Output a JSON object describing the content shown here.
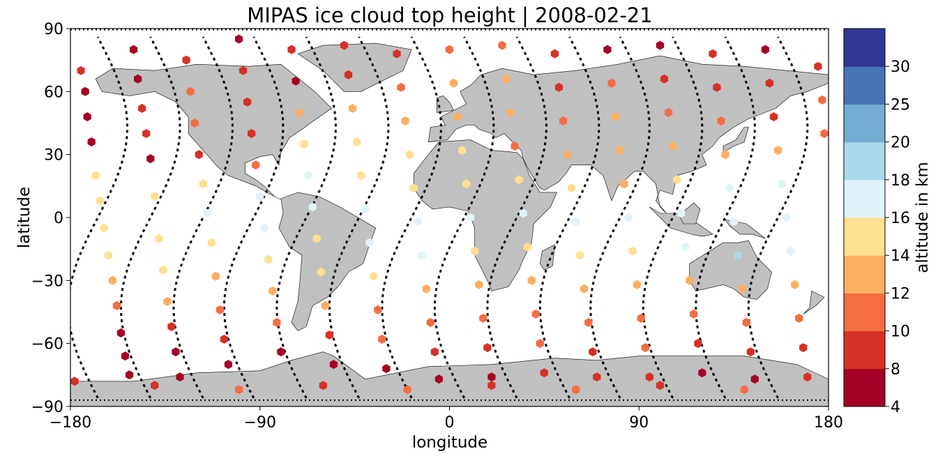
{
  "chart_data": {
    "type": "scatter",
    "title": "MIPAS ice cloud top height | 2008-02-21",
    "xlabel": "longitude",
    "ylabel": "latitude",
    "xlim": [
      -180,
      180
    ],
    "ylim": [
      -90,
      90
    ],
    "xticks": [
      -180,
      -90,
      0,
      90,
      180
    ],
    "yticks": [
      -90,
      -60,
      -30,
      0,
      30,
      60,
      90
    ],
    "xtick_labels": [
      "−180",
      "−90",
      "0",
      "90",
      "180"
    ],
    "ytick_labels": [
      "−90",
      "−60",
      "−30",
      "0",
      "30",
      "60",
      "90"
    ],
    "colorbar": {
      "label": "altitude in km",
      "bounds": [
        4,
        8,
        10,
        12,
        14,
        16,
        18,
        20,
        25,
        30
      ],
      "tick_labels": [
        "4",
        "8",
        "10",
        "12",
        "14",
        "16",
        "18",
        "20",
        "25",
        "30"
      ],
      "colors": [
        "#a50026",
        "#d73027",
        "#f46d43",
        "#fdae61",
        "#fee090",
        "#e0f3f8",
        "#abd9e9",
        "#74add1",
        "#4575b4",
        "#313695"
      ]
    },
    "land_color": "#c0c0c0",
    "track_style": "black dotted",
    "track_phases": [
      -167,
      -142,
      -117,
      -93,
      -68,
      -43,
      -18,
      7,
      32,
      57,
      81,
      106,
      131,
      156
    ],
    "points": [
      [
        -175,
        70,
        8
      ],
      [
        -173,
        60,
        6
      ],
      [
        -172,
        48,
        6
      ],
      [
        -170,
        36,
        5
      ],
      [
        -168,
        20,
        15
      ],
      [
        -166,
        8,
        15
      ],
      [
        -164,
        -5,
        15
      ],
      [
        -162,
        -18,
        15
      ],
      [
        -160,
        -30,
        12
      ],
      [
        -158,
        -42,
        10
      ],
      [
        -156,
        -55,
        7
      ],
      [
        -154,
        -66,
        6
      ],
      [
        -152,
        -75,
        6
      ],
      [
        -150,
        80,
        7
      ],
      [
        -148,
        66,
        6
      ],
      [
        -146,
        52,
        9
      ],
      [
        -144,
        40,
        8
      ],
      [
        -142,
        28,
        7
      ],
      [
        -140,
        10,
        15
      ],
      [
        -138,
        -10,
        15
      ],
      [
        -136,
        -25,
        15
      ],
      [
        -134,
        -40,
        12
      ],
      [
        -132,
        -52,
        9
      ],
      [
        -130,
        -64,
        7
      ],
      [
        -128,
        -76,
        6
      ],
      [
        -125,
        75,
        9
      ],
      [
        -123,
        60,
        11
      ],
      [
        -121,
        45,
        10
      ],
      [
        -119,
        30,
        8
      ],
      [
        -117,
        16,
        15
      ],
      [
        -115,
        2,
        17
      ],
      [
        -113,
        -12,
        15
      ],
      [
        -111,
        -28,
        12
      ],
      [
        -109,
        -44,
        10
      ],
      [
        -107,
        -58,
        9
      ],
      [
        -105,
        -70,
        6
      ],
      [
        -100,
        85,
        7
      ],
      [
        -98,
        70,
        8
      ],
      [
        -96,
        55,
        9
      ],
      [
        -94,
        40,
        9
      ],
      [
        -92,
        25,
        11
      ],
      [
        -90,
        10,
        16
      ],
      [
        -88,
        -5,
        17
      ],
      [
        -86,
        -20,
        15
      ],
      [
        -84,
        -35,
        12
      ],
      [
        -82,
        -50,
        10
      ],
      [
        -80,
        -64,
        6
      ],
      [
        -75,
        80,
        8
      ],
      [
        -73,
        65,
        7
      ],
      [
        -71,
        50,
        13
      ],
      [
        -69,
        35,
        14
      ],
      [
        -67,
        20,
        16
      ],
      [
        -65,
        5,
        17
      ],
      [
        -63,
        -10,
        15
      ],
      [
        -61,
        -26,
        14
      ],
      [
        -59,
        -42,
        12
      ],
      [
        -57,
        -56,
        9
      ],
      [
        -55,
        -70,
        7
      ],
      [
        -50,
        82,
        8
      ],
      [
        -48,
        68,
        9
      ],
      [
        -46,
        52,
        13
      ],
      [
        -44,
        36,
        14
      ],
      [
        -42,
        20,
        15
      ],
      [
        -40,
        4,
        17
      ],
      [
        -38,
        -12,
        16
      ],
      [
        -36,
        -28,
        15
      ],
      [
        -34,
        -44,
        11
      ],
      [
        -32,
        -58,
        10
      ],
      [
        -30,
        -72,
        7
      ],
      [
        -25,
        78,
        9
      ],
      [
        -23,
        62,
        11
      ],
      [
        -21,
        46,
        13
      ],
      [
        -19,
        30,
        14
      ],
      [
        -17,
        14,
        15
      ],
      [
        -15,
        -2,
        17
      ],
      [
        -13,
        -18,
        16
      ],
      [
        -11,
        -34,
        12
      ],
      [
        -9,
        -50,
        11
      ],
      [
        -7,
        -64,
        9
      ],
      [
        -5,
        -77,
        7
      ],
      [
        0,
        80,
        11
      ],
      [
        2,
        64,
        12
      ],
      [
        4,
        48,
        13
      ],
      [
        6,
        32,
        14
      ],
      [
        8,
        16,
        15
      ],
      [
        10,
        0,
        17
      ],
      [
        12,
        -16,
        15
      ],
      [
        14,
        -32,
        12
      ],
      [
        16,
        -48,
        11
      ],
      [
        18,
        -62,
        9
      ],
      [
        20,
        -76,
        7
      ],
      [
        25,
        82,
        11
      ],
      [
        27,
        66,
        12
      ],
      [
        29,
        50,
        13
      ],
      [
        31,
        34,
        11
      ],
      [
        33,
        18,
        14
      ],
      [
        35,
        2,
        17
      ],
      [
        37,
        -14,
        15
      ],
      [
        39,
        -30,
        12
      ],
      [
        41,
        -46,
        11
      ],
      [
        43,
        -60,
        10
      ],
      [
        45,
        -74,
        8
      ],
      [
        50,
        78,
        9
      ],
      [
        52,
        62,
        8
      ],
      [
        54,
        46,
        10
      ],
      [
        56,
        30,
        12
      ],
      [
        58,
        14,
        15
      ],
      [
        60,
        -2,
        16
      ],
      [
        62,
        -18,
        15
      ],
      [
        64,
        -34,
        13
      ],
      [
        66,
        -50,
        11
      ],
      [
        68,
        -64,
        9
      ],
      [
        70,
        -76,
        8
      ],
      [
        75,
        80,
        7
      ],
      [
        77,
        64,
        11
      ],
      [
        79,
        48,
        12
      ],
      [
        81,
        32,
        13
      ],
      [
        83,
        16,
        12
      ],
      [
        85,
        0,
        17
      ],
      [
        87,
        -16,
        15
      ],
      [
        89,
        -32,
        12
      ],
      [
        91,
        -48,
        11
      ],
      [
        93,
        -62,
        10
      ],
      [
        95,
        -76,
        8
      ],
      [
        100,
        82,
        7
      ],
      [
        102,
        66,
        8
      ],
      [
        104,
        50,
        10
      ],
      [
        106,
        34,
        12
      ],
      [
        108,
        18,
        15
      ],
      [
        110,
        2,
        17
      ],
      [
        112,
        -14,
        17
      ],
      [
        114,
        -30,
        13
      ],
      [
        116,
        -46,
        10
      ],
      [
        118,
        -60,
        9
      ],
      [
        120,
        -74,
        7
      ],
      [
        125,
        78,
        8
      ],
      [
        127,
        62,
        9
      ],
      [
        129,
        46,
        10
      ],
      [
        131,
        30,
        13
      ],
      [
        133,
        14,
        17
      ],
      [
        135,
        -2,
        17
      ],
      [
        137,
        -18,
        18
      ],
      [
        139,
        -34,
        12
      ],
      [
        141,
        -50,
        10
      ],
      [
        143,
        -64,
        8
      ],
      [
        145,
        -77,
        7
      ],
      [
        150,
        80,
        7
      ],
      [
        152,
        64,
        8
      ],
      [
        154,
        48,
        9
      ],
      [
        156,
        32,
        12
      ],
      [
        158,
        16,
        17
      ],
      [
        160,
        0,
        17
      ],
      [
        162,
        -16,
        16
      ],
      [
        164,
        -32,
        12
      ],
      [
        166,
        -48,
        10
      ],
      [
        168,
        -62,
        9
      ],
      [
        170,
        -76,
        8
      ],
      [
        175,
        72,
        9
      ],
      [
        177,
        56,
        10
      ],
      [
        178,
        40,
        11
      ],
      [
        -178,
        -78,
        9
      ],
      [
        -140,
        -80,
        9
      ],
      [
        -100,
        -82,
        10
      ],
      [
        -60,
        -80,
        9
      ],
      [
        -20,
        -82,
        10
      ],
      [
        20,
        -80,
        9
      ],
      [
        60,
        -82,
        10
      ],
      [
        100,
        -80,
        9
      ],
      [
        140,
        -82,
        10
      ]
    ]
  }
}
